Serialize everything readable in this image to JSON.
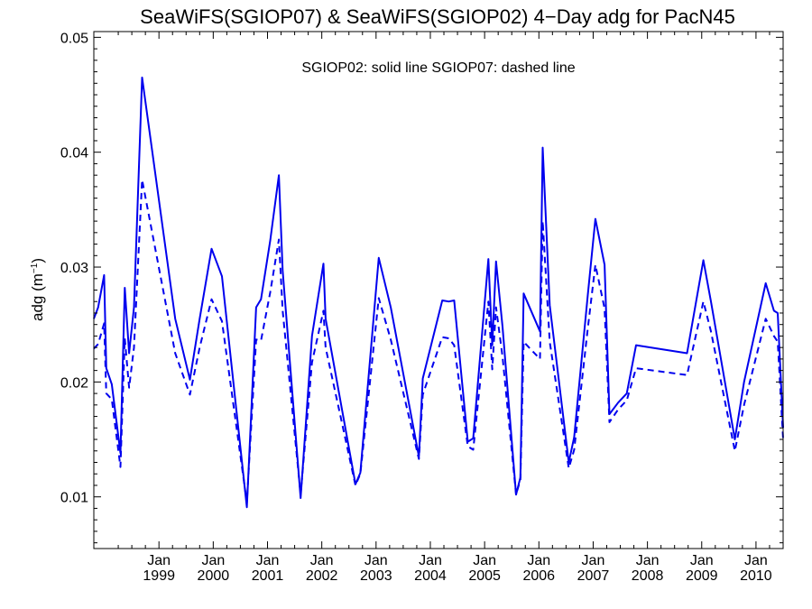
{
  "chart_data": {
    "type": "line",
    "title": "SeaWiFS(SGIOP07) & SeaWiFS(SGIOP02) 4−Day adg for PacN45",
    "annotation": "SGIOP02: solid line   SGIOP07: dashed line",
    "ylabel": "adg (m",
    "ylabel_sup": "−1",
    "ylabel_close": ")",
    "xlim": [
      1997.8,
      2010.5
    ],
    "ylim": [
      0.0055,
      0.0505
    ],
    "yticks": [
      0.01,
      0.02,
      0.03,
      0.04,
      0.05
    ],
    "ytick_labels": [
      "0.01",
      "0.02",
      "0.03",
      "0.04",
      "0.05"
    ],
    "xticks": [
      {
        "x": 1999.0,
        "month": "Jan",
        "year": "1999"
      },
      {
        "x": 2000.0,
        "month": "Jan",
        "year": "2000"
      },
      {
        "x": 2001.0,
        "month": "Jan",
        "year": "2001"
      },
      {
        "x": 2002.0,
        "month": "Jan",
        "year": "2002"
      },
      {
        "x": 2003.0,
        "month": "Jan",
        "year": "2003"
      },
      {
        "x": 2004.0,
        "month": "Jan",
        "year": "2004"
      },
      {
        "x": 2005.0,
        "month": "Jan",
        "year": "2005"
      },
      {
        "x": 2006.0,
        "month": "Jan",
        "year": "2006"
      },
      {
        "x": 2007.0,
        "month": "Jan",
        "year": "2007"
      },
      {
        "x": 2008.0,
        "month": "Jan",
        "year": "2008"
      },
      {
        "x": 2009.0,
        "month": "Jan",
        "year": "2009"
      },
      {
        "x": 2010.0,
        "month": "Jan",
        "year": "2010"
      }
    ],
    "color": "#0000ee",
    "series": [
      {
        "name": "SGIOP02",
        "style": "solid",
        "points": [
          [
            1997.8,
            0.0255
          ],
          [
            1997.88,
            0.0265
          ],
          [
            1997.99,
            0.0293
          ],
          [
            1998.03,
            0.0212
          ],
          [
            1998.13,
            0.0198
          ],
          [
            1998.29,
            0.0138
          ],
          [
            1998.37,
            0.0282
          ],
          [
            1998.45,
            0.0225
          ],
          [
            1998.54,
            0.0265
          ],
          [
            1998.69,
            0.0465
          ],
          [
            1999.3,
            0.0255
          ],
          [
            1999.57,
            0.0202
          ],
          [
            1999.75,
            0.0255
          ],
          [
            1999.97,
            0.0316
          ],
          [
            2000.16,
            0.0292
          ],
          [
            2000.62,
            0.0091
          ],
          [
            2000.79,
            0.0265
          ],
          [
            2000.88,
            0.0272
          ],
          [
            2001.05,
            0.0323
          ],
          [
            2001.21,
            0.038
          ],
          [
            2001.28,
            0.0297
          ],
          [
            2001.61,
            0.0099
          ],
          [
            2001.82,
            0.024
          ],
          [
            2002.03,
            0.0303
          ],
          [
            2002.07,
            0.0255
          ],
          [
            2002.62,
            0.0111
          ],
          [
            2002.71,
            0.0121
          ],
          [
            2003.05,
            0.0308
          ],
          [
            2003.27,
            0.0265
          ],
          [
            2003.79,
            0.0135
          ],
          [
            2003.86,
            0.0203
          ],
          [
            2004.22,
            0.0271
          ],
          [
            2004.34,
            0.027
          ],
          [
            2004.44,
            0.0271
          ],
          [
            2004.69,
            0.0148
          ],
          [
            2004.79,
            0.0151
          ],
          [
            2005.07,
            0.0307
          ],
          [
            2005.14,
            0.0232
          ],
          [
            2005.21,
            0.0305
          ],
          [
            2005.33,
            0.0248
          ],
          [
            2005.58,
            0.0102
          ],
          [
            2005.66,
            0.0117
          ],
          [
            2005.72,
            0.0277
          ],
          [
            2006.02,
            0.0244
          ],
          [
            2006.07,
            0.0404
          ],
          [
            2006.2,
            0.0267
          ],
          [
            2006.55,
            0.013
          ],
          [
            2006.65,
            0.0152
          ],
          [
            2006.9,
            0.0275
          ],
          [
            2007.04,
            0.0342
          ],
          [
            2007.21,
            0.0302
          ],
          [
            2007.3,
            0.0172
          ],
          [
            2007.46,
            0.0182
          ],
          [
            2007.62,
            0.019
          ],
          [
            2007.79,
            0.0232
          ],
          [
            2008.73,
            0.0225
          ],
          [
            2009.03,
            0.0306
          ],
          [
            2009.17,
            0.027
          ],
          [
            2009.61,
            0.015
          ],
          [
            2009.78,
            0.02
          ],
          [
            2010.18,
            0.0286
          ],
          [
            2010.33,
            0.0262
          ],
          [
            2010.4,
            0.026
          ],
          [
            2010.5,
            0.016
          ]
        ]
      },
      {
        "name": "SGIOP07",
        "style": "dashed",
        "points": [
          [
            1997.8,
            0.0229
          ],
          [
            1997.88,
            0.0233
          ],
          [
            1997.99,
            0.0251
          ],
          [
            1998.03,
            0.019
          ],
          [
            1998.13,
            0.0185
          ],
          [
            1998.29,
            0.0126
          ],
          [
            1998.37,
            0.0238
          ],
          [
            1998.45,
            0.0195
          ],
          [
            1998.54,
            0.023
          ],
          [
            1998.69,
            0.0376
          ],
          [
            1999.3,
            0.0225
          ],
          [
            1999.57,
            0.0189
          ],
          [
            1999.75,
            0.023
          ],
          [
            1999.97,
            0.0272
          ],
          [
            2000.16,
            0.0253
          ],
          [
            2000.62,
            0.0095
          ],
          [
            2000.79,
            0.0237
          ],
          [
            2000.88,
            0.0236
          ],
          [
            2001.05,
            0.0278
          ],
          [
            2001.21,
            0.0324
          ],
          [
            2001.28,
            0.0262
          ],
          [
            2001.61,
            0.0102
          ],
          [
            2001.82,
            0.0217
          ],
          [
            2002.03,
            0.0262
          ],
          [
            2002.07,
            0.023
          ],
          [
            2002.62,
            0.011
          ],
          [
            2002.71,
            0.012
          ],
          [
            2003.05,
            0.0273
          ],
          [
            2003.27,
            0.0237
          ],
          [
            2003.79,
            0.0133
          ],
          [
            2003.86,
            0.0189
          ],
          [
            2004.22,
            0.0239
          ],
          [
            2004.34,
            0.0238
          ],
          [
            2004.44,
            0.0232
          ],
          [
            2004.69,
            0.0144
          ],
          [
            2004.79,
            0.0141
          ],
          [
            2005.07,
            0.027
          ],
          [
            2005.14,
            0.0211
          ],
          [
            2005.21,
            0.0265
          ],
          [
            2005.33,
            0.0222
          ],
          [
            2005.58,
            0.0102
          ],
          [
            2005.66,
            0.0115
          ],
          [
            2005.72,
            0.0235
          ],
          [
            2006.02,
            0.022
          ],
          [
            2006.07,
            0.034
          ],
          [
            2006.2,
            0.0235
          ],
          [
            2006.55,
            0.0125
          ],
          [
            2006.65,
            0.0141
          ],
          [
            2006.9,
            0.0246
          ],
          [
            2007.04,
            0.0302
          ],
          [
            2007.21,
            0.0264
          ],
          [
            2007.3,
            0.0165
          ],
          [
            2007.46,
            0.0176
          ],
          [
            2007.62,
            0.0184
          ],
          [
            2007.79,
            0.0212
          ],
          [
            2008.73,
            0.0206
          ],
          [
            2009.03,
            0.027
          ],
          [
            2009.17,
            0.0244
          ],
          [
            2009.61,
            0.014
          ],
          [
            2009.78,
            0.018
          ],
          [
            2010.18,
            0.0255
          ],
          [
            2010.33,
            0.024
          ],
          [
            2010.4,
            0.0235
          ],
          [
            2010.5,
            0.015
          ]
        ]
      }
    ]
  }
}
